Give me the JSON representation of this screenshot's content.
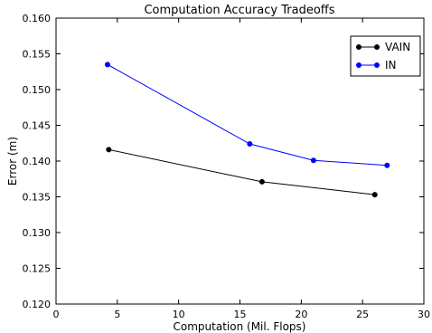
{
  "chart_data": {
    "type": "line",
    "title": "Computation Accuracy Tradeoffs",
    "xlabel": "Computation (Mil. Flops)",
    "ylabel": "Error (m)",
    "xlim": [
      0,
      30
    ],
    "ylim": [
      0.12,
      0.16
    ],
    "xticks": [
      "0",
      "5",
      "10",
      "15",
      "20",
      "25",
      "30"
    ],
    "yticks": [
      "0.120",
      "0.125",
      "0.130",
      "0.135",
      "0.140",
      "0.145",
      "0.150",
      "0.155",
      "0.160"
    ],
    "legend_position": "top-right",
    "grid": false,
    "series": [
      {
        "name": "VAIN",
        "color": "#000000",
        "points": [
          [
            4.3,
            0.1416
          ],
          [
            16.8,
            0.1371
          ],
          [
            26.0,
            0.1353
          ]
        ]
      },
      {
        "name": "IN",
        "color": "#0000ff",
        "points": [
          [
            4.2,
            0.1535
          ],
          [
            15.8,
            0.1424
          ],
          [
            21.0,
            0.1401
          ],
          [
            27.0,
            0.1394
          ]
        ]
      }
    ]
  }
}
